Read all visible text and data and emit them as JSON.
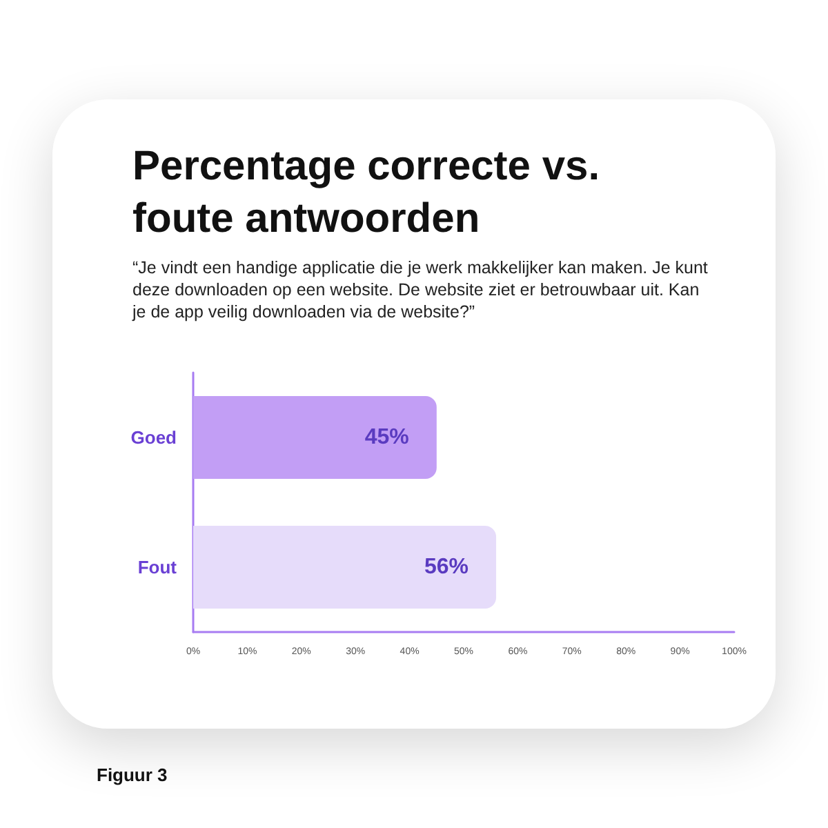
{
  "chart_data": {
    "type": "bar",
    "orientation": "horizontal",
    "title": "Percentage correcte vs. foute antwoorden",
    "subtitle": "“Je vindt een handige applicatie die je werk makkelijker kan maken. Je kunt deze downloaden op een website. De website ziet er betrouwbaar uit. Kan je de app veilig downloaden via de website?”",
    "annotations": [
      "Figuur 3"
    ],
    "categories": [
      "Goed",
      "Fout"
    ],
    "values": [
      45,
      56
    ],
    "colors": [
      "#c29ef5",
      "#e6dcfa"
    ],
    "value_labels": [
      "45%",
      "56%"
    ],
    "xlim": [
      0,
      100
    ],
    "xticks": [
      {
        "value": 0,
        "label": "0%"
      },
      {
        "value": 10,
        "label": "10%"
      },
      {
        "value": 20,
        "label": "20%"
      },
      {
        "value": 30,
        "label": "30%"
      },
      {
        "value": 40,
        "label": "40%"
      },
      {
        "value": 50,
        "label": "50%"
      },
      {
        "value": 60,
        "label": "60%"
      },
      {
        "value": 70,
        "label": "70%"
      },
      {
        "value": 80,
        "label": "80%"
      },
      {
        "value": 90,
        "label": "90%"
      },
      {
        "value": 100,
        "label": "100%"
      }
    ]
  }
}
